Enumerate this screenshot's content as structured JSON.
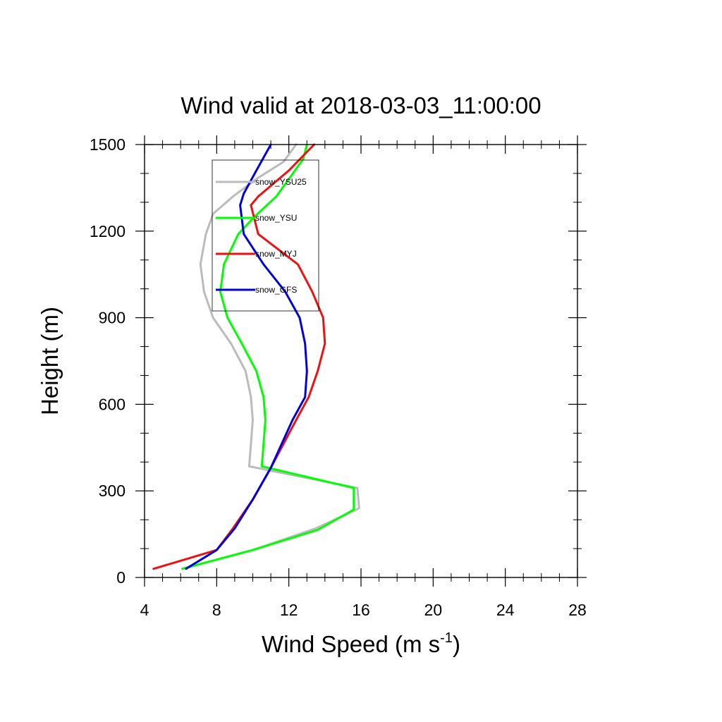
{
  "chart_data": {
    "type": "line",
    "title": "Wind valid at 2018-03-03_11:00:00",
    "xlabel": "Wind Speed (m s",
    "xlabel_sup": "-1",
    "xlabel_end": ")",
    "ylabel": "Height (m)",
    "xlim": [
      4,
      28
    ],
    "ylim": [
      0,
      1500
    ],
    "xticks": [
      "4",
      "8",
      "12",
      "16",
      "20",
      "24",
      "28"
    ],
    "yticks": [
      "0",
      "300",
      "600",
      "900",
      "1200",
      "1500"
    ],
    "grid": false,
    "legend_position": "top-left",
    "series": [
      {
        "name": "snow_YSU25",
        "color": "#bbbbbb",
        "x": [
          6.1,
          10.0,
          13.5,
          15.9,
          15.8,
          9.8,
          10.0,
          9.9,
          9.6,
          8.8,
          7.8,
          7.3,
          7.1,
          7.4,
          7.8,
          8.9,
          10.3,
          11.7,
          12.4
        ],
        "y": [
          30,
          95,
          170,
          240,
          310,
          385,
          545,
          625,
          715,
          810,
          900,
          990,
          1085,
          1190,
          1260,
          1320,
          1385,
          1440,
          1500
        ]
      },
      {
        "name": "snow_YSU",
        "color": "#00ff00",
        "x": [
          6.1,
          10.0,
          13.6,
          15.6,
          15.6,
          10.5,
          10.7,
          10.6,
          10.2,
          9.4,
          8.6,
          8.2,
          8.4,
          9.2,
          10.1,
          11.3,
          12.8,
          13.0
        ],
        "y": [
          30,
          95,
          165,
          235,
          310,
          385,
          545,
          625,
          715,
          810,
          900,
          990,
          1085,
          1190,
          1250,
          1320,
          1450,
          1500
        ]
      },
      {
        "name": "snow_MYJ",
        "color": "#ee1111",
        "x": [
          4.5,
          8.0,
          8.9,
          10.0,
          11.0,
          12.4,
          13.1,
          13.6,
          14.0,
          13.9,
          13.3,
          12.5,
          10.3,
          9.9,
          10.3,
          12.0,
          13.4
        ],
        "y": [
          30,
          95,
          170,
          270,
          380,
          545,
          625,
          715,
          810,
          900,
          990,
          1085,
          1190,
          1290,
          1320,
          1410,
          1500
        ]
      },
      {
        "name": "snow_GFS",
        "color": "#0000dd",
        "x": [
          6.3,
          8.0,
          9.0,
          10.0,
          11.0,
          12.2,
          12.9,
          13.0,
          12.9,
          12.6,
          11.8,
          10.6,
          9.5,
          9.3,
          9.5,
          10.2,
          11.0
        ],
        "y": [
          30,
          95,
          170,
          270,
          380,
          545,
          625,
          715,
          810,
          900,
          990,
          1085,
          1190,
          1290,
          1330,
          1410,
          1500
        ]
      }
    ]
  }
}
